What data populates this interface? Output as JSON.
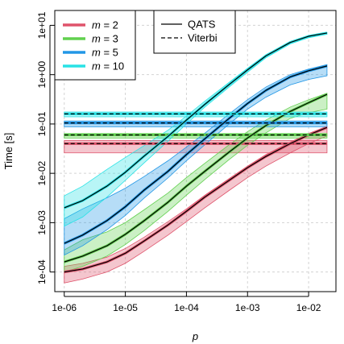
{
  "chart_data": {
    "type": "line",
    "title": "",
    "xlabel": "p",
    "ylabel": "Time [s]",
    "xscale": "log",
    "yscale": "log",
    "xlim": [
      7e-07,
      0.028
    ],
    "ylim": [
      4e-05,
      20
    ],
    "x_ticks": [
      {
        "value": 1e-06,
        "label": "1e-06"
      },
      {
        "value": 1e-05,
        "label": "1e-05"
      },
      {
        "value": 0.0001,
        "label": "1e-04"
      },
      {
        "value": 0.001,
        "label": "1e-03"
      },
      {
        "value": 0.01,
        "label": "1e-02"
      }
    ],
    "y_ticks": [
      {
        "value": 0.0001,
        "label": "1e-04"
      },
      {
        "value": 0.001,
        "label": "1e-03"
      },
      {
        "value": 0.01,
        "label": "1e-02"
      },
      {
        "value": 0.1,
        "label": "1e-01"
      },
      {
        "value": 1,
        "label": "1e+00"
      },
      {
        "value": 10,
        "label": "1e+01"
      }
    ],
    "grid": true,
    "x": [
      1e-06,
      2e-06,
      5e-06,
      1e-05,
      2e-05,
      5e-05,
      0.0001,
      0.0002,
      0.0005,
      0.001,
      0.002,
      0.005,
      0.01,
      0.02
    ],
    "legend_m": {
      "position": "top-left",
      "entries": [
        {
          "label": "m = 2",
          "color": "#DF536B"
        },
        {
          "label": "m = 3",
          "color": "#61D04F"
        },
        {
          "label": "m = 5",
          "color": "#2297E6"
        },
        {
          "label": "m = 10",
          "color": "#28E2E5"
        }
      ]
    },
    "legend_method": {
      "position": "top-center",
      "entries": [
        {
          "label": "QATS",
          "style": "solid"
        },
        {
          "label": "Viterbi",
          "style": "dashed"
        }
      ]
    },
    "series": [
      {
        "name": "m = 2",
        "color": "#DF536B",
        "qats": [
          0.0001,
          0.000115,
          0.00016,
          0.00024,
          0.00042,
          0.0009,
          0.0017,
          0.0033,
          0.0072,
          0.013,
          0.022,
          0.04,
          0.06,
          0.085
        ],
        "qats_low": [
          6e-05,
          7.2e-05,
          0.0001,
          0.00015,
          0.00026,
          0.00056,
          0.00105,
          0.002,
          0.0045,
          0.0082,
          0.014,
          0.026,
          0.04,
          0.057
        ],
        "qats_high": [
          0.00013,
          0.00015,
          0.0002,
          0.0003,
          0.0005,
          0.00105,
          0.0019,
          0.0036,
          0.0078,
          0.014,
          0.024,
          0.043,
          0.064,
          0.09
        ],
        "viterbi": [
          0.04,
          0.04,
          0.04,
          0.04,
          0.04,
          0.04,
          0.04,
          0.04,
          0.04,
          0.04,
          0.04,
          0.04,
          0.04,
          0.04
        ],
        "viterbi_low": [
          0.026,
          0.026,
          0.026,
          0.026,
          0.026,
          0.026,
          0.026,
          0.026,
          0.026,
          0.026,
          0.026,
          0.026,
          0.026,
          0.026
        ],
        "viterbi_high": [
          0.046,
          0.046,
          0.046,
          0.046,
          0.046,
          0.046,
          0.046,
          0.046,
          0.046,
          0.046,
          0.046,
          0.046,
          0.046,
          0.046
        ]
      },
      {
        "name": "m = 3",
        "color": "#61D04F",
        "qats": [
          0.00016,
          0.00021,
          0.00034,
          0.00058,
          0.00108,
          0.0026,
          0.0055,
          0.011,
          0.027,
          0.052,
          0.093,
          0.18,
          0.27,
          0.4
        ],
        "qats_low": [
          0.0001,
          0.00013,
          0.00021,
          0.00036,
          0.00068,
          0.0017,
          0.0036,
          0.0075,
          0.019,
          0.037,
          0.066,
          0.13,
          0.17,
          0.2
        ],
        "qats_high": [
          0.00028,
          0.00045,
          0.00065,
          0.001,
          0.0018,
          0.004,
          0.0082,
          0.016,
          0.038,
          0.07,
          0.12,
          0.22,
          0.31,
          0.42
        ],
        "viterbi": [
          0.06,
          0.06,
          0.06,
          0.06,
          0.06,
          0.06,
          0.06,
          0.06,
          0.06,
          0.06,
          0.06,
          0.06,
          0.06,
          0.06
        ],
        "viterbi_low": [
          0.052,
          0.052,
          0.052,
          0.052,
          0.052,
          0.052,
          0.052,
          0.052,
          0.052,
          0.052,
          0.052,
          0.052,
          0.052,
          0.052
        ],
        "viterbi_high": [
          0.064,
          0.064,
          0.064,
          0.064,
          0.064,
          0.064,
          0.064,
          0.064,
          0.064,
          0.064,
          0.064,
          0.064,
          0.064,
          0.064
        ]
      },
      {
        "name": "m = 5",
        "color": "#2297E6",
        "qats": [
          0.00038,
          0.00056,
          0.0011,
          0.0021,
          0.0045,
          0.011,
          0.024,
          0.05,
          0.13,
          0.26,
          0.48,
          0.9,
          1.2,
          1.5
        ],
        "qats_low": [
          0.00022,
          0.00034,
          0.00072,
          0.0014,
          0.0031,
          0.0081,
          0.018,
          0.038,
          0.1,
          0.2,
          0.35,
          0.62,
          0.8,
          0.95
        ],
        "qats_high": [
          0.0012,
          0.0019,
          0.0032,
          0.005,
          0.0085,
          0.018,
          0.034,
          0.065,
          0.16,
          0.31,
          0.56,
          1.0,
          1.3,
          1.6
        ],
        "viterbi": [
          0.105,
          0.105,
          0.105,
          0.105,
          0.105,
          0.105,
          0.105,
          0.105,
          0.105,
          0.105,
          0.105,
          0.105,
          0.105,
          0.105
        ],
        "viterbi_low": [
          0.088,
          0.088,
          0.088,
          0.088,
          0.088,
          0.088,
          0.088,
          0.088,
          0.088,
          0.088,
          0.088,
          0.088,
          0.088,
          0.088
        ],
        "viterbi_high": [
          0.115,
          0.115,
          0.115,
          0.115,
          0.115,
          0.115,
          0.115,
          0.115,
          0.115,
          0.115,
          0.115,
          0.115,
          0.115,
          0.115
        ]
      },
      {
        "name": "m = 10",
        "color": "#28E2E5",
        "qats": [
          0.002,
          0.0028,
          0.0055,
          0.0105,
          0.022,
          0.056,
          0.12,
          0.25,
          0.63,
          1.25,
          2.4,
          4.5,
          6.0,
          7.0
        ],
        "qats_low": [
          0.00085,
          0.0013,
          0.0033,
          0.0072,
          0.016,
          0.045,
          0.1,
          0.22,
          0.56,
          1.12,
          2.2,
          4.2,
          5.6,
          6.6
        ],
        "qats_high": [
          0.0035,
          0.0055,
          0.012,
          0.021,
          0.036,
          0.075,
          0.145,
          0.29,
          0.7,
          1.35,
          2.55,
          4.7,
          6.2,
          7.2
        ],
        "viterbi": [
          0.16,
          0.16,
          0.16,
          0.16,
          0.16,
          0.16,
          0.16,
          0.16,
          0.16,
          0.16,
          0.16,
          0.16,
          0.16,
          0.16
        ],
        "viterbi_low": [
          0.14,
          0.14,
          0.14,
          0.14,
          0.14,
          0.14,
          0.14,
          0.14,
          0.14,
          0.14,
          0.14,
          0.14,
          0.14,
          0.14
        ],
        "viterbi_high": [
          0.175,
          0.175,
          0.175,
          0.175,
          0.175,
          0.175,
          0.175,
          0.175,
          0.175,
          0.175,
          0.175,
          0.175,
          0.175,
          0.175
        ]
      }
    ]
  }
}
